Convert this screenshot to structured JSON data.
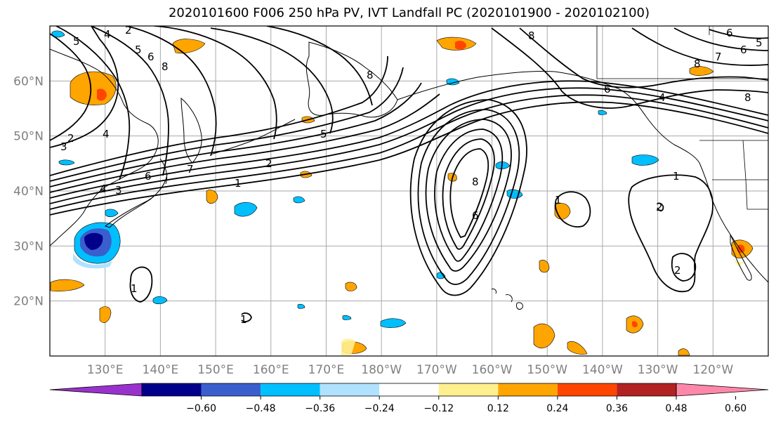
{
  "title": "2020101600 F006 250 hPa PV, IVT Landfall PC (2020101900 - 2020102100)",
  "lat_labels": [
    "60°N",
    "50°N",
    "40°N",
    "30°N",
    "20°N"
  ],
  "lon_labels": [
    "130°E",
    "140°E",
    "150°E",
    "160°E",
    "170°E",
    "180°W",
    "170°W",
    "160°W",
    "150°W",
    "140°W",
    "130°W",
    "120°W"
  ],
  "map_extent": {
    "lon_min": 120,
    "lon_max": 250,
    "lat_min": 10,
    "lat_max": 70
  },
  "colorbar": {
    "labels": [
      "−0.60",
      "−0.48",
      "−0.36",
      "−0.24",
      "−0.12",
      "0.12",
      "0.24",
      "0.36",
      "0.48",
      "0.60"
    ],
    "colors": [
      "#9932cc",
      "#00008b",
      "#3a5fcd",
      "#00bfff",
      "#b0e2ff",
      "#ffffff",
      "#fff08f",
      "#ffa500",
      "#ff4500",
      "#b22222",
      "#ff88aa"
    ]
  },
  "pv_contour_labels": [
    "5",
    "4",
    "2",
    "5",
    "6",
    "8",
    "2",
    "3",
    "4",
    "6",
    "7",
    "4",
    "3",
    "5",
    "2",
    "1",
    "8",
    "8",
    "6",
    "4",
    "8",
    "8",
    "6",
    "1",
    "2",
    "2",
    "1",
    "1",
    "1",
    "6",
    "5",
    "7",
    "6",
    "8"
  ]
}
